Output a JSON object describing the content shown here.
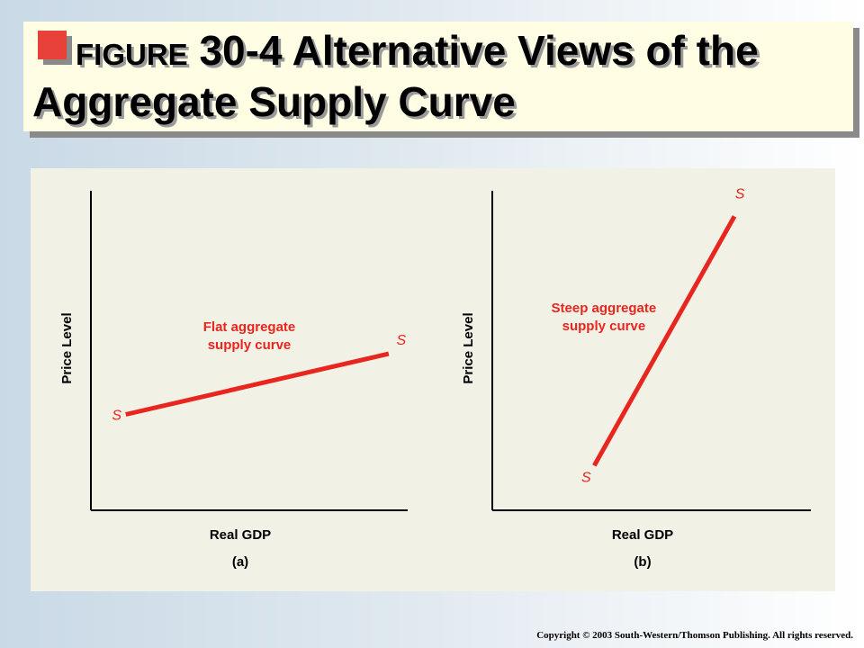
{
  "title": {
    "figure_word": "FIGURE",
    "rest": "30-4 Alternative Views of the Aggregate Supply Curve"
  },
  "copyright": "Copyright © 2003 South-Western/Thomson Publishing. All rights reserved.",
  "colors": {
    "curve": "#e8261f",
    "annotation": "#e8261f",
    "axis": "#000000",
    "title_box": "#fffde4",
    "panel": "#f1f1e5"
  },
  "chart_data": [
    {
      "type": "line",
      "panel_label": "(a)",
      "xlabel": "Real GDP",
      "ylabel": "Price Level",
      "xlim": [
        0,
        10
      ],
      "ylim": [
        0,
        10
      ],
      "grid": false,
      "series": [
        {
          "x": [
            1.1,
            9.4
          ],
          "y": [
            3.0,
            4.9
          ],
          "end_labels": [
            "S",
            "S"
          ]
        }
      ],
      "annotation": {
        "lines": [
          "Flat aggregate",
          "supply curve"
        ],
        "x": 5.0,
        "y": 5.6
      }
    },
    {
      "type": "line",
      "panel_label": "(b)",
      "xlabel": "Real GDP",
      "ylabel": "Price Level",
      "xlim": [
        0,
        10
      ],
      "ylim": [
        0,
        10
      ],
      "grid": false,
      "series": [
        {
          "x": [
            3.2,
            7.6
          ],
          "y": [
            1.4,
            9.2
          ],
          "end_labels": [
            "S",
            "S"
          ]
        }
      ],
      "annotation": {
        "lines": [
          "Steep aggregate",
          "supply curve"
        ],
        "x": 3.5,
        "y": 6.2
      }
    }
  ]
}
